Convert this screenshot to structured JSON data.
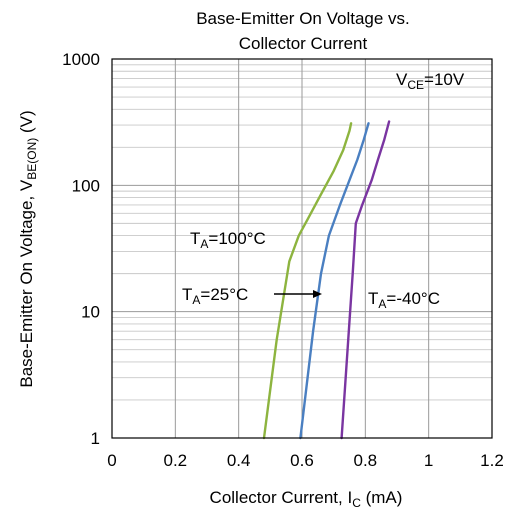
{
  "chart_data": {
    "type": "line",
    "title_line1": "Base-Emitter On Voltage vs.",
    "title_line2": "Collector Current",
    "xlabel": "Collector Current, I",
    "xlabel_sub": "C",
    "xlabel_unit": " (mA)",
    "ylabel": "Base-Emitter On Voltage, V",
    "ylabel_sub": "BE(ON)",
    "ylabel_unit": " (V)",
    "xlim": [
      0,
      1.2
    ],
    "ylim": [
      1,
      1000
    ],
    "y_scale": "log",
    "grid": true,
    "x_ticks": [
      {
        "value": 0,
        "label": "0"
      },
      {
        "value": 0.2,
        "label": "0.2"
      },
      {
        "value": 0.4,
        "label": "0.4"
      },
      {
        "value": 0.6,
        "label": "0.6"
      },
      {
        "value": 0.8,
        "label": "0.8"
      },
      {
        "value": 1.0,
        "label": "1"
      },
      {
        "value": 1.2,
        "label": "1.2"
      }
    ],
    "y_ticks": [
      {
        "value": 1,
        "label": "1"
      },
      {
        "value": 10,
        "label": "10"
      },
      {
        "value": 100,
        "label": "100"
      },
      {
        "value": 1000,
        "label": "1000"
      }
    ],
    "condition": {
      "text": "V",
      "sub": "CE",
      "rest": "=10V"
    },
    "series": [
      {
        "label_main": "T",
        "label_sub": "A",
        "label_rest": "=100°C",
        "color": "#8db43f",
        "points": [
          [
            0.48,
            1
          ],
          [
            0.52,
            6
          ],
          [
            0.56,
            25
          ],
          [
            0.59,
            40
          ],
          [
            0.62,
            55
          ],
          [
            0.66,
            85
          ],
          [
            0.7,
            130
          ],
          [
            0.73,
            190
          ],
          [
            0.75,
            270
          ],
          [
            0.755,
            310
          ]
        ]
      },
      {
        "label_main": "T",
        "label_sub": "A",
        "label_rest": "=25°C",
        "color": "#4a7fc1",
        "points": [
          [
            0.595,
            1
          ],
          [
            0.635,
            7
          ],
          [
            0.66,
            20
          ],
          [
            0.685,
            40
          ],
          [
            0.72,
            70
          ],
          [
            0.75,
            110
          ],
          [
            0.775,
            160
          ],
          [
            0.795,
            230
          ],
          [
            0.81,
            310
          ]
        ]
      },
      {
        "label_main": "T",
        "label_sub": "A",
        "label_rest": "=-40°C",
        "color": "#7a35a1",
        "points": [
          [
            0.725,
            1
          ],
          [
            0.76,
            20
          ],
          [
            0.77,
            50
          ],
          [
            0.79,
            70
          ],
          [
            0.82,
            110
          ],
          [
            0.84,
            160
          ],
          [
            0.86,
            230
          ],
          [
            0.875,
            320
          ]
        ]
      }
    ]
  }
}
